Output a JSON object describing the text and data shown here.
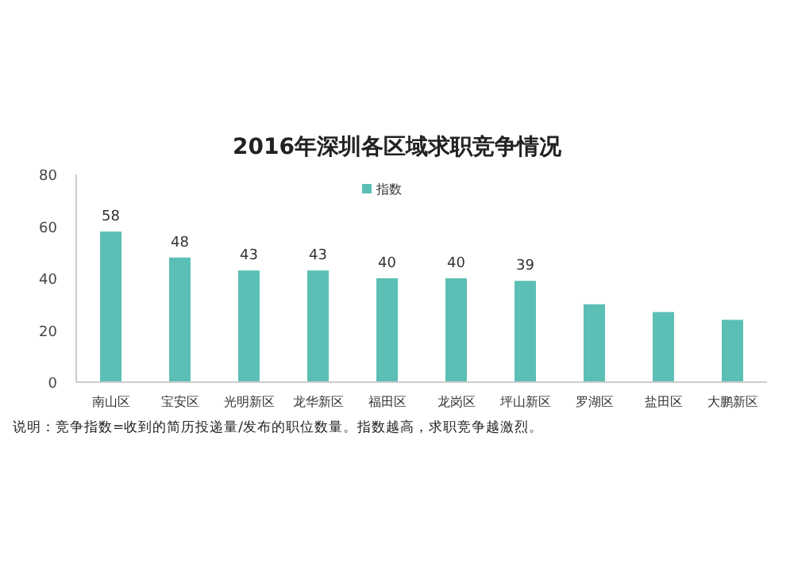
{
  "chart_data": {
    "type": "bar",
    "title": "2016年深圳各区域求职竞争情况",
    "categories": [
      "南山区",
      "宝安区",
      "光明新区",
      "龙华新区",
      "福田区",
      "龙岗区",
      "坪山新区",
      "罗湖区",
      "盐田区",
      "大鹏新区"
    ],
    "series": [
      {
        "name": "指数",
        "color": "#5bbfb5",
        "values": [
          58,
          48,
          43,
          43,
          40,
          40,
          39,
          30,
          27,
          24
        ],
        "value_labels": [
          "58",
          "48",
          "43",
          "43",
          "40",
          "40",
          "39",
          null,
          null,
          null
        ]
      }
    ],
    "ylim": [
      0,
      80
    ],
    "yticks": [
      0,
      20,
      40,
      60,
      80
    ],
    "grid": false,
    "legend": "top",
    "annotations": [
      "说明：竞争指数=收到的简历投递量/发布的职位数量。指数越高，求职竞争越激烈。"
    ]
  }
}
